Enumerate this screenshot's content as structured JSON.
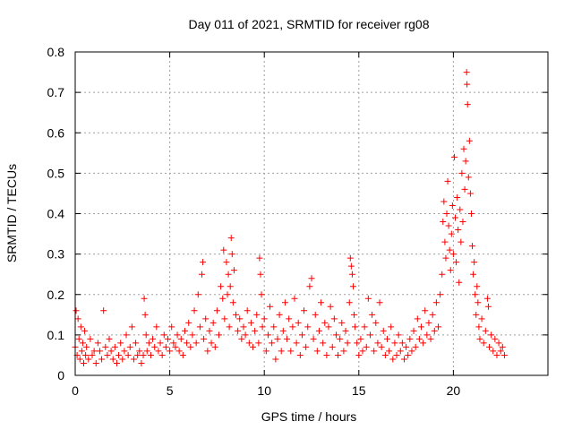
{
  "chart_data": {
    "type": "scatter",
    "title": "Day 011 of 2021, SRMTID for receiver rg08",
    "xlabel": "GPS time / hours",
    "ylabel": "SRMTID / TECUs",
    "xlim": [
      0,
      25
    ],
    "ylim": [
      0,
      0.8
    ],
    "xticks": [
      0,
      5,
      10,
      15,
      20
    ],
    "yticks": [
      0,
      0.1,
      0.2,
      0.3,
      0.4,
      0.5,
      0.6,
      0.7,
      0.8
    ],
    "xtick_labels": [
      "0",
      "5",
      "10",
      "15",
      "20"
    ],
    "ytick_labels": [
      "0",
      "0.1",
      "0.2",
      "0.3",
      "0.4",
      "0.5",
      "0.6",
      "0.7",
      "0.8"
    ],
    "grid": true,
    "marker": "+",
    "color": "#ff0000",
    "series": [
      {
        "name": "SRMTID rg08",
        "points": [
          [
            0.0,
            0.07
          ],
          [
            0.05,
            0.16
          ],
          [
            0.1,
            0.05
          ],
          [
            0.15,
            0.14
          ],
          [
            0.2,
            0.09
          ],
          [
            0.25,
            0.04
          ],
          [
            0.3,
            0.12
          ],
          [
            0.35,
            0.06
          ],
          [
            0.4,
            0.08
          ],
          [
            0.45,
            0.03
          ],
          [
            0.5,
            0.11
          ],
          [
            0.55,
            0.05
          ],
          [
            0.6,
            0.07
          ],
          [
            0.7,
            0.04
          ],
          [
            0.8,
            0.09
          ],
          [
            0.9,
            0.05
          ],
          [
            1.0,
            0.06
          ],
          [
            1.1,
            0.03
          ],
          [
            1.2,
            0.08
          ],
          [
            1.3,
            0.06
          ],
          [
            1.4,
            0.04
          ],
          [
            1.5,
            0.16
          ],
          [
            1.6,
            0.07
          ],
          [
            1.7,
            0.05
          ],
          [
            1.8,
            0.09
          ],
          [
            1.9,
            0.06
          ],
          [
            2.0,
            0.04
          ],
          [
            2.1,
            0.07
          ],
          [
            2.2,
            0.03
          ],
          [
            2.3,
            0.05
          ],
          [
            2.4,
            0.08
          ],
          [
            2.5,
            0.04
          ],
          [
            2.6,
            0.06
          ],
          [
            2.7,
            0.1
          ],
          [
            2.8,
            0.05
          ],
          [
            2.9,
            0.07
          ],
          [
            3.0,
            0.12
          ],
          [
            3.1,
            0.04
          ],
          [
            3.2,
            0.08
          ],
          [
            3.3,
            0.05
          ],
          [
            3.4,
            0.06
          ],
          [
            3.5,
            0.03
          ],
          [
            3.6,
            0.05
          ],
          [
            3.65,
            0.19
          ],
          [
            3.7,
            0.15
          ],
          [
            3.75,
            0.1
          ],
          [
            3.8,
            0.06
          ],
          [
            3.9,
            0.08
          ],
          [
            4.0,
            0.05
          ],
          [
            4.1,
            0.09
          ],
          [
            4.2,
            0.07
          ],
          [
            4.3,
            0.12
          ],
          [
            4.4,
            0.06
          ],
          [
            4.5,
            0.08
          ],
          [
            4.6,
            0.05
          ],
          [
            4.7,
            0.1
          ],
          [
            4.8,
            0.07
          ],
          [
            4.9,
            0.09
          ],
          [
            5.0,
            0.06
          ],
          [
            5.1,
            0.12
          ],
          [
            5.2,
            0.08
          ],
          [
            5.3,
            0.07
          ],
          [
            5.4,
            0.1
          ],
          [
            5.5,
            0.06
          ],
          [
            5.6,
            0.09
          ],
          [
            5.7,
            0.05
          ],
          [
            5.8,
            0.11
          ],
          [
            5.9,
            0.08
          ],
          [
            6.0,
            0.13
          ],
          [
            6.1,
            0.07
          ],
          [
            6.2,
            0.1
          ],
          [
            6.3,
            0.16
          ],
          [
            6.4,
            0.08
          ],
          [
            6.5,
            0.2
          ],
          [
            6.6,
            0.12
          ],
          [
            6.7,
            0.25
          ],
          [
            6.75,
            0.28
          ],
          [
            6.8,
            0.09
          ],
          [
            6.9,
            0.14
          ],
          [
            7.0,
            0.06
          ],
          [
            7.1,
            0.11
          ],
          [
            7.2,
            0.08
          ],
          [
            7.3,
            0.13
          ],
          [
            7.4,
            0.07
          ],
          [
            7.5,
            0.16
          ],
          [
            7.6,
            0.1
          ],
          [
            7.7,
            0.22
          ],
          [
            7.8,
            0.19
          ],
          [
            7.85,
            0.31
          ],
          [
            7.9,
            0.14
          ],
          [
            8.0,
            0.28
          ],
          [
            8.05,
            0.2
          ],
          [
            8.1,
            0.25
          ],
          [
            8.15,
            0.12
          ],
          [
            8.2,
            0.22
          ],
          [
            8.25,
            0.34
          ],
          [
            8.3,
            0.3
          ],
          [
            8.35,
            0.18
          ],
          [
            8.4,
            0.26
          ],
          [
            8.5,
            0.15
          ],
          [
            8.6,
            0.11
          ],
          [
            8.7,
            0.14
          ],
          [
            8.8,
            0.09
          ],
          [
            8.9,
            0.12
          ],
          [
            9.0,
            0.1
          ],
          [
            9.1,
            0.16
          ],
          [
            9.2,
            0.08
          ],
          [
            9.3,
            0.13
          ],
          [
            9.4,
            0.07
          ],
          [
            9.5,
            0.11
          ],
          [
            9.6,
            0.15
          ],
          [
            9.7,
            0.08
          ],
          [
            9.75,
            0.29
          ],
          [
            9.8,
            0.25
          ],
          [
            9.85,
            0.2
          ],
          [
            9.9,
            0.12
          ],
          [
            10.0,
            0.14
          ],
          [
            10.1,
            0.06
          ],
          [
            10.2,
            0.1
          ],
          [
            10.3,
            0.17
          ],
          [
            10.4,
            0.08
          ],
          [
            10.5,
            0.12
          ],
          [
            10.6,
            0.04
          ],
          [
            10.7,
            0.09
          ],
          [
            10.8,
            0.15
          ],
          [
            10.9,
            0.06
          ],
          [
            11.0,
            0.11
          ],
          [
            11.1,
            0.18
          ],
          [
            11.2,
            0.09
          ],
          [
            11.3,
            0.14
          ],
          [
            11.4,
            0.06
          ],
          [
            11.5,
            0.12
          ],
          [
            11.6,
            0.19
          ],
          [
            11.7,
            0.08
          ],
          [
            11.8,
            0.13
          ],
          [
            11.9,
            0.05
          ],
          [
            12.0,
            0.1
          ],
          [
            12.1,
            0.16
          ],
          [
            12.2,
            0.07
          ],
          [
            12.3,
            0.12
          ],
          [
            12.4,
            0.22
          ],
          [
            12.5,
            0.24
          ],
          [
            12.6,
            0.09
          ],
          [
            12.7,
            0.15
          ],
          [
            12.8,
            0.06
          ],
          [
            12.9,
            0.11
          ],
          [
            13.0,
            0.18
          ],
          [
            13.1,
            0.08
          ],
          [
            13.2,
            0.13
          ],
          [
            13.3,
            0.05
          ],
          [
            13.4,
            0.12
          ],
          [
            13.5,
            0.17
          ],
          [
            13.6,
            0.07
          ],
          [
            13.7,
            0.14
          ],
          [
            13.8,
            0.1
          ],
          [
            13.9,
            0.05
          ],
          [
            14.0,
            0.09
          ],
          [
            14.1,
            0.13
          ],
          [
            14.2,
            0.06
          ],
          [
            14.3,
            0.11
          ],
          [
            14.4,
            0.08
          ],
          [
            14.5,
            0.18
          ],
          [
            14.55,
            0.29
          ],
          [
            14.6,
            0.27
          ],
          [
            14.65,
            0.25
          ],
          [
            14.7,
            0.22
          ],
          [
            14.75,
            0.15
          ],
          [
            14.8,
            0.12
          ],
          [
            14.9,
            0.08
          ],
          [
            15.0,
            0.05
          ],
          [
            15.1,
            0.09
          ],
          [
            15.2,
            0.06
          ],
          [
            15.3,
            0.12
          ],
          [
            15.4,
            0.07
          ],
          [
            15.5,
            0.19
          ],
          [
            15.6,
            0.1
          ],
          [
            15.7,
            0.15
          ],
          [
            15.8,
            0.06
          ],
          [
            15.9,
            0.13
          ],
          [
            16.0,
            0.08
          ],
          [
            16.1,
            0.18
          ],
          [
            16.2,
            0.07
          ],
          [
            16.3,
            0.11
          ],
          [
            16.4,
            0.05
          ],
          [
            16.5,
            0.09
          ],
          [
            16.6,
            0.06
          ],
          [
            16.7,
            0.12
          ],
          [
            16.8,
            0.04
          ],
          [
            16.9,
            0.08
          ],
          [
            17.0,
            0.05
          ],
          [
            17.1,
            0.1
          ],
          [
            17.2,
            0.06
          ],
          [
            17.3,
            0.08
          ],
          [
            17.4,
            0.04
          ],
          [
            17.5,
            0.07
          ],
          [
            17.6,
            0.05
          ],
          [
            17.7,
            0.09
          ],
          [
            17.8,
            0.06
          ],
          [
            17.9,
            0.11
          ],
          [
            18.0,
            0.07
          ],
          [
            18.1,
            0.14
          ],
          [
            18.2,
            0.09
          ],
          [
            18.3,
            0.12
          ],
          [
            18.4,
            0.08
          ],
          [
            18.5,
            0.16
          ],
          [
            18.6,
            0.1
          ],
          [
            18.7,
            0.13
          ],
          [
            18.8,
            0.09
          ],
          [
            18.9,
            0.15
          ],
          [
            19.0,
            0.11
          ],
          [
            19.1,
            0.18
          ],
          [
            19.2,
            0.12
          ],
          [
            19.3,
            0.2
          ],
          [
            19.4,
            0.25
          ],
          [
            19.45,
            0.38
          ],
          [
            19.5,
            0.43
          ],
          [
            19.55,
            0.33
          ],
          [
            19.6,
            0.29
          ],
          [
            19.65,
            0.4
          ],
          [
            19.7,
            0.48
          ],
          [
            19.75,
            0.37
          ],
          [
            19.8,
            0.31
          ],
          [
            19.85,
            0.26
          ],
          [
            19.9,
            0.35
          ],
          [
            19.95,
            0.42
          ],
          [
            20.0,
            0.3
          ],
          [
            20.05,
            0.54
          ],
          [
            20.1,
            0.39
          ],
          [
            20.15,
            0.28
          ],
          [
            20.2,
            0.44
          ],
          [
            20.25,
            0.36
          ],
          [
            20.3,
            0.23
          ],
          [
            20.35,
            0.41
          ],
          [
            20.4,
            0.33
          ],
          [
            20.45,
            0.5
          ],
          [
            20.5,
            0.38
          ],
          [
            20.55,
            0.56
          ],
          [
            20.6,
            0.46
          ],
          [
            20.65,
            0.53
          ],
          [
            20.7,
            0.75
          ],
          [
            20.72,
            0.72
          ],
          [
            20.75,
            0.67
          ],
          [
            20.8,
            0.49
          ],
          [
            20.85,
            0.58
          ],
          [
            20.9,
            0.45
          ],
          [
            20.95,
            0.4
          ],
          [
            21.0,
            0.32
          ],
          [
            21.05,
            0.25
          ],
          [
            21.1,
            0.28
          ],
          [
            21.15,
            0.2
          ],
          [
            21.2,
            0.15
          ],
          [
            21.25,
            0.22
          ],
          [
            21.3,
            0.18
          ],
          [
            21.35,
            0.12
          ],
          [
            21.4,
            0.09
          ],
          [
            21.5,
            0.14
          ],
          [
            21.6,
            0.08
          ],
          [
            21.7,
            0.11
          ],
          [
            21.8,
            0.19
          ],
          [
            21.85,
            0.17
          ],
          [
            21.9,
            0.07
          ],
          [
            22.0,
            0.1
          ],
          [
            22.1,
            0.06
          ],
          [
            22.2,
            0.09
          ],
          [
            22.3,
            0.05
          ],
          [
            22.4,
            0.08
          ],
          [
            22.5,
            0.06
          ],
          [
            22.6,
            0.07
          ],
          [
            22.7,
            0.05
          ]
        ]
      }
    ]
  }
}
